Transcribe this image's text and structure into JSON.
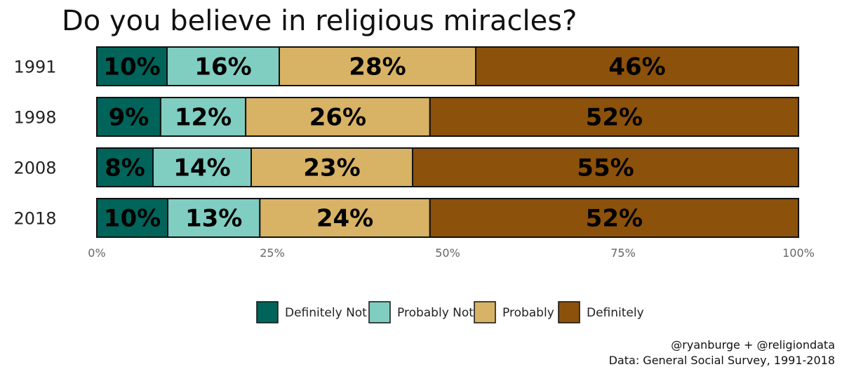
{
  "chart_data": {
    "type": "bar",
    "orientation": "horizontal",
    "stacked": true,
    "title": "Do you believe in religious miracles?",
    "categories": [
      "1991",
      "1998",
      "2008",
      "2018"
    ],
    "series": [
      {
        "name": "Definitely Not",
        "color": "#00645A",
        "values": [
          10,
          9,
          8,
          10
        ],
        "labels": [
          "10%",
          "9%",
          "8%",
          "10%"
        ]
      },
      {
        "name": "Probably Not",
        "color": "#80CDC1",
        "values": [
          16,
          12,
          14,
          13
        ],
        "labels": [
          "16%",
          "12%",
          "14%",
          "13%"
        ]
      },
      {
        "name": "Probably",
        "color": "#D8B365",
        "values": [
          28,
          26,
          23,
          24
        ],
        "labels": [
          "28%",
          "26%",
          "23%",
          "24%"
        ]
      },
      {
        "name": "Definitely",
        "color": "#8C510A",
        "values": [
          46,
          52,
          55,
          52
        ],
        "labels": [
          "46%",
          "52%",
          "55%",
          "52%"
        ]
      }
    ],
    "xlim": [
      0,
      100
    ],
    "xticks": [
      0,
      25,
      50,
      75,
      100
    ],
    "xtick_labels": [
      "0%",
      "25%",
      "50%",
      "75%",
      "100%"
    ],
    "xlabel": "",
    "ylabel": "",
    "legend_position": "bottom",
    "grid": false
  },
  "caption": {
    "line1": "@ryanburge + @religiondata",
    "line2": "Data: General Social Survey, 1991-2018"
  }
}
